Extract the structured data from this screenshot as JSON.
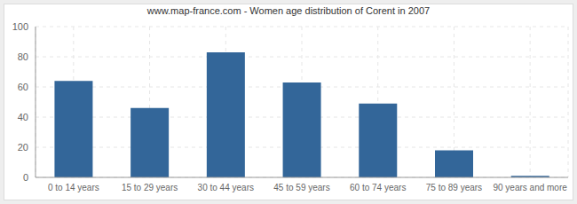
{
  "chart_data": {
    "type": "bar",
    "title": "www.map-france.com - Women age distribution of Corent in 2007",
    "categories": [
      "0 to 14 years",
      "15 to 29 years",
      "30 to 44 years",
      "45 to 59 years",
      "60 to 74 years",
      "75 to 89 years",
      "90 years and more"
    ],
    "values": [
      64,
      46,
      83,
      63,
      49,
      18,
      1
    ],
    "color": "#336699",
    "ylim": [
      0,
      100
    ],
    "yticks": [
      0,
      20,
      40,
      60,
      80,
      100
    ],
    "grid": true
  }
}
